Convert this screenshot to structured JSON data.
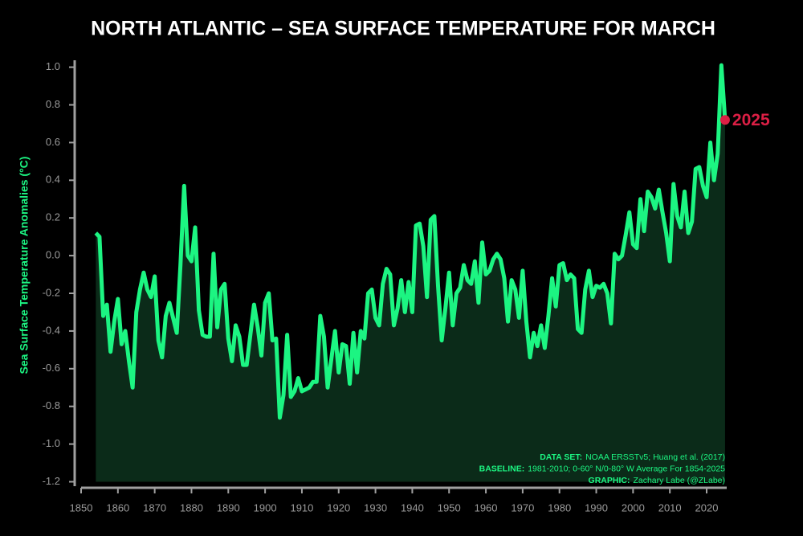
{
  "chart_data": {
    "type": "area-line",
    "title": "NORTH ATLANTIC – SEA SURFACE TEMPERATURE FOR MARCH",
    "y_label": "Sea Surface Temperature Anomalies (°C)",
    "x": [
      1854,
      1855,
      1856,
      1857,
      1858,
      1859,
      1860,
      1861,
      1862,
      1863,
      1864,
      1865,
      1866,
      1867,
      1868,
      1869,
      1870,
      1871,
      1872,
      1873,
      1874,
      1875,
      1876,
      1877,
      1878,
      1879,
      1880,
      1881,
      1882,
      1883,
      1884,
      1885,
      1886,
      1887,
      1888,
      1889,
      1890,
      1891,
      1892,
      1893,
      1894,
      1895,
      1896,
      1897,
      1898,
      1899,
      1900,
      1901,
      1902,
      1903,
      1904,
      1905,
      1906,
      1907,
      1908,
      1909,
      1910,
      1911,
      1912,
      1913,
      1914,
      1915,
      1916,
      1917,
      1918,
      1919,
      1920,
      1921,
      1922,
      1923,
      1924,
      1925,
      1926,
      1927,
      1928,
      1929,
      1930,
      1931,
      1932,
      1933,
      1934,
      1935,
      1936,
      1937,
      1938,
      1939,
      1940,
      1941,
      1942,
      1943,
      1944,
      1945,
      1946,
      1947,
      1948,
      1949,
      1950,
      1951,
      1952,
      1953,
      1954,
      1955,
      1956,
      1957,
      1958,
      1959,
      1960,
      1961,
      1962,
      1963,
      1964,
      1965,
      1966,
      1967,
      1968,
      1969,
      1970,
      1971,
      1972,
      1973,
      1974,
      1975,
      1976,
      1977,
      1978,
      1979,
      1980,
      1981,
      1982,
      1983,
      1984,
      1985,
      1986,
      1987,
      1988,
      1989,
      1990,
      1991,
      1992,
      1993,
      1994,
      1995,
      1996,
      1997,
      1998,
      1999,
      2000,
      2001,
      2002,
      2003,
      2004,
      2005,
      2006,
      2007,
      2008,
      2009,
      2010,
      2011,
      2012,
      2013,
      2014,
      2015,
      2016,
      2017,
      2018,
      2019,
      2020,
      2021,
      2022,
      2023,
      2024,
      2025
    ],
    "series": [
      {
        "color": "#1cf582",
        "fill": "#0b2b19",
        "values": [
          0.12,
          0.1,
          -0.32,
          -0.26,
          -0.51,
          -0.35,
          -0.23,
          -0.47,
          -0.4,
          -0.56,
          -0.7,
          -0.3,
          -0.18,
          -0.09,
          -0.18,
          -0.22,
          -0.11,
          -0.45,
          -0.54,
          -0.32,
          -0.25,
          -0.33,
          -0.41,
          -0.05,
          0.37,
          0.0,
          -0.03,
          0.15,
          -0.29,
          -0.42,
          -0.43,
          -0.43,
          0.01,
          -0.38,
          -0.18,
          -0.15,
          -0.44,
          -0.56,
          -0.37,
          -0.43,
          -0.58,
          -0.58,
          -0.42,
          -0.26,
          -0.38,
          -0.53,
          -0.25,
          -0.2,
          -0.45,
          -0.44,
          -0.86,
          -0.74,
          -0.42,
          -0.75,
          -0.72,
          -0.65,
          -0.72,
          -0.71,
          -0.7,
          -0.67,
          -0.67,
          -0.32,
          -0.43,
          -0.7,
          -0.55,
          -0.4,
          -0.62,
          -0.47,
          -0.48,
          -0.68,
          -0.41,
          -0.62,
          -0.4,
          -0.44,
          -0.2,
          -0.18,
          -0.33,
          -0.37,
          -0.15,
          -0.07,
          -0.1,
          -0.37,
          -0.28,
          -0.13,
          -0.3,
          -0.14,
          -0.3,
          0.16,
          0.17,
          0.05,
          -0.22,
          0.19,
          0.21,
          -0.16,
          -0.45,
          -0.28,
          -0.09,
          -0.37,
          -0.2,
          -0.17,
          -0.05,
          -0.13,
          -0.15,
          -0.03,
          -0.25,
          0.07,
          -0.1,
          -0.08,
          -0.02,
          0.01,
          -0.02,
          -0.12,
          -0.35,
          -0.13,
          -0.18,
          -0.33,
          -0.08,
          -0.35,
          -0.54,
          -0.41,
          -0.48,
          -0.37,
          -0.49,
          -0.32,
          -0.12,
          -0.27,
          -0.05,
          -0.04,
          -0.13,
          -0.1,
          -0.12,
          -0.39,
          -0.41,
          -0.18,
          -0.08,
          -0.22,
          -0.16,
          -0.17,
          -0.15,
          -0.2,
          -0.36,
          0.01,
          -0.02,
          0.0,
          0.11,
          0.23,
          0.06,
          0.04,
          0.3,
          0.13,
          0.34,
          0.31,
          0.25,
          0.35,
          0.23,
          0.12,
          -0.03,
          0.38,
          0.21,
          0.15,
          0.34,
          0.12,
          0.18,
          0.46,
          0.47,
          0.37,
          0.31,
          0.6,
          0.4,
          0.54,
          1.01,
          0.72
        ]
      }
    ],
    "highlight_color": "#dc1f45",
    "xlim": [
      1848,
      2027
    ],
    "xticks": [
      1850,
      1860,
      1870,
      1880,
      1890,
      1900,
      1910,
      1920,
      1930,
      1940,
      1950,
      1960,
      1970,
      1980,
      1990,
      2000,
      2010,
      2020
    ],
    "ylim": [
      -1.2,
      1.08
    ],
    "yticks": [
      {
        "value": -1.2,
        "label": "-1.2"
      },
      {
        "value": -1.0,
        "label": "-1.0"
      },
      {
        "value": -0.8,
        "label": "-0.8"
      },
      {
        "value": -0.6,
        "label": "-0.6"
      },
      {
        "value": -0.4,
        "label": "-0.4"
      },
      {
        "value": -0.2,
        "label": "-0.2"
      },
      {
        "value": 0,
        "label": "0.0"
      },
      {
        "value": 0.2,
        "label": "0.2"
      },
      {
        "value": 0.4,
        "label": "0.4"
      },
      {
        "value": 0.6,
        "label": "0.6"
      },
      {
        "value": 0.8,
        "label": "0.8"
      },
      {
        "value": 1.0,
        "label": "1.0"
      }
    ],
    "annotations": [
      {
        "label": "DATA SET:",
        "text": "NOAA ERSSTv5; Huang et al. (2017)"
      },
      {
        "label": "BASELINE:",
        "text": "1981-2010; 0-60° N/0-80° W Average For 1854-2025"
      },
      {
        "label": "GRAPHIC:",
        "text": "Zachary Labe (@ZLabe)"
      }
    ]
  }
}
